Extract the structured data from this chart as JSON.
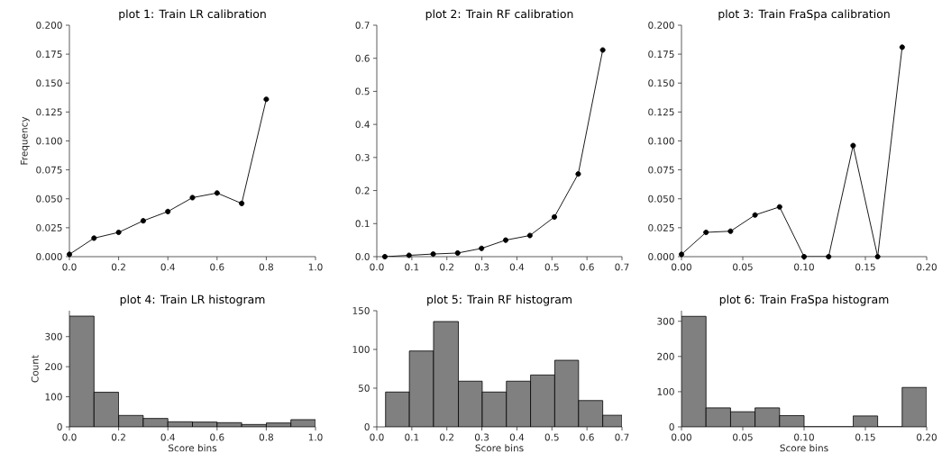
{
  "chart_data": [
    {
      "type": "line",
      "title": "plot 1: Train LR calibration",
      "ylabel": "Frequency",
      "x": [
        0.0,
        0.1,
        0.2,
        0.3,
        0.4,
        0.5,
        0.6,
        0.7,
        0.8
      ],
      "values": [
        0.002,
        0.016,
        0.021,
        0.031,
        0.039,
        0.051,
        0.055,
        0.046,
        0.136
      ],
      "color": "#000000",
      "marker": "circle",
      "xlim": [
        0,
        1
      ],
      "ylim": [
        0,
        0.2
      ],
      "xticks": [
        {
          "value": 0,
          "label": "0.0"
        },
        {
          "value": 0.2,
          "label": "0.2"
        },
        {
          "value": 0.4,
          "label": "0.4"
        },
        {
          "value": 0.6,
          "label": "0.6"
        },
        {
          "value": 0.8,
          "label": "0.8"
        },
        {
          "value": 1,
          "label": "1.0"
        }
      ],
      "yticks": [
        {
          "value": 0,
          "label": "0.000"
        },
        {
          "value": 0.025,
          "label": "0.025"
        },
        {
          "value": 0.05,
          "label": "0.050"
        },
        {
          "value": 0.075,
          "label": "0.075"
        },
        {
          "value": 0.1,
          "label": "0.100"
        },
        {
          "value": 0.125,
          "label": "0.125"
        },
        {
          "value": 0.15,
          "label": "0.150"
        },
        {
          "value": 0.175,
          "label": "0.175"
        },
        {
          "value": 0.2,
          "label": "0.200"
        }
      ]
    },
    {
      "type": "line",
      "title": "plot 2: Train RF calibration",
      "x": [
        0.023,
        0.092,
        0.161,
        0.231,
        0.299,
        0.368,
        0.437,
        0.507,
        0.575,
        0.645
      ],
      "values": [
        0.0,
        0.004,
        0.008,
        0.011,
        0.025,
        0.05,
        0.064,
        0.12,
        0.25,
        0.625
      ],
      "color": "#000000",
      "marker": "circle",
      "xlim": [
        0,
        0.7
      ],
      "ylim": [
        0,
        0.7
      ],
      "xticks": [
        {
          "value": 0,
          "label": "0.0"
        },
        0.1,
        0.2,
        0.3,
        0.4,
        0.5,
        0.6,
        0.7
      ],
      "yticks": [
        {
          "value": 0,
          "label": "0.0"
        },
        0.1,
        0.2,
        0.3,
        0.4,
        0.5,
        0.6,
        0.7
      ]
    },
    {
      "type": "line",
      "title": "plot 3: Train FraSpa calibration",
      "x": [
        0.0,
        0.02,
        0.04,
        0.06,
        0.08,
        0.1,
        0.12,
        0.14,
        0.16,
        0.18
      ],
      "values": [
        0.002,
        0.021,
        0.022,
        0.036,
        0.043,
        0.0,
        0.0,
        0.096,
        0.0,
        0.181
      ],
      "color": "#000000",
      "marker": "circle",
      "xlim": [
        0,
        0.2
      ],
      "ylim": [
        0,
        0.2
      ],
      "xticks": [
        {
          "value": 0,
          "label": "0.00"
        },
        0.05,
        {
          "value": 0.1,
          "label": "0.10"
        },
        0.15,
        {
          "value": 0.2,
          "label": "0.20"
        }
      ],
      "yticks": [
        {
          "value": 0,
          "label": "0.000"
        },
        {
          "value": 0.025,
          "label": "0.025"
        },
        {
          "value": 0.05,
          "label": "0.050"
        },
        {
          "value": 0.075,
          "label": "0.075"
        },
        {
          "value": 0.1,
          "label": "0.100"
        },
        {
          "value": 0.125,
          "label": "0.125"
        },
        {
          "value": 0.15,
          "label": "0.150"
        },
        {
          "value": 0.175,
          "label": "0.175"
        },
        {
          "value": 0.2,
          "label": "0.200"
        }
      ]
    },
    {
      "type": "histogram",
      "title": "plot 4: Train LR histogram",
      "xlabel": "Score bins",
      "ylabel": "Count",
      "bins": [
        0.0,
        0.1,
        0.2,
        0.3,
        0.4,
        0.5,
        0.6,
        0.7,
        0.8,
        0.9,
        1.0
      ],
      "values": [
        368,
        115,
        38,
        28,
        17,
        16,
        14,
        8,
        13,
        24
      ],
      "color": "#808080",
      "xlim": [
        0,
        1
      ],
      "ylim": [
        0,
        386
      ],
      "xticks": [
        {
          "value": 0,
          "label": "0.0"
        },
        0.2,
        0.4,
        0.6,
        0.8,
        {
          "value": 1,
          "label": "1.0"
        }
      ],
      "yticks": [
        0,
        100,
        200,
        300
      ]
    },
    {
      "type": "histogram",
      "title": "plot 5: Train RF histogram",
      "xlabel": "Score bins",
      "bins": [
        0.025,
        0.093,
        0.162,
        0.233,
        0.301,
        0.37,
        0.439,
        0.508,
        0.576,
        0.645,
        0.7
      ],
      "values": [
        45,
        98,
        136,
        59,
        45,
        59,
        67,
        86,
        34,
        15
      ],
      "color": "#808080",
      "xlim": [
        0,
        0.7
      ],
      "ylim": [
        0,
        150
      ],
      "xticks": [
        {
          "value": 0,
          "label": "0.0"
        },
        0.1,
        0.2,
        0.3,
        0.4,
        0.5,
        0.6,
        0.7
      ],
      "yticks": [
        0,
        50,
        100,
        150
      ]
    },
    {
      "type": "histogram",
      "title": "plot 6: Train FraSpa histogram",
      "xlabel": "Score bins",
      "bins": [
        0.0,
        0.02,
        0.04,
        0.06,
        0.08,
        0.1,
        0.12,
        0.14,
        0.16,
        0.18,
        0.2
      ],
      "values": [
        314,
        54,
        43,
        54,
        32,
        0,
        0,
        31,
        0,
        112
      ],
      "color": "#808080",
      "xlim": [
        0,
        0.2
      ],
      "ylim": [
        0,
        330
      ],
      "xticks": [
        {
          "value": 0,
          "label": "0.00"
        },
        0.05,
        {
          "value": 0.1,
          "label": "0.10"
        },
        0.15,
        {
          "value": 0.2,
          "label": "0.20"
        }
      ],
      "yticks": [
        0,
        100,
        200,
        300
      ]
    }
  ]
}
